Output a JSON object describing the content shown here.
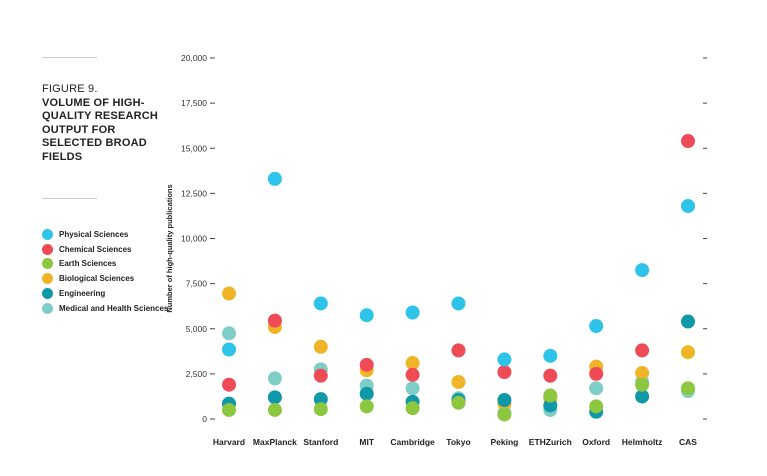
{
  "figure": {
    "number": "FIGURE 9.",
    "title": "VOLUME OF HIGH-QUALITY RESEARCH OUTPUT FOR SELECTED BROAD FIELDS"
  },
  "chart_data": {
    "type": "scatter",
    "title": "VOLUME OF HIGH-QUALITY RESEARCH OUTPUT FOR SELECTED BROAD FIELDS",
    "xlabel": "",
    "ylabel": "Number of high-quality publications",
    "ylim": [
      0,
      20000
    ],
    "yticks": [
      0,
      2500,
      5000,
      7500,
      10000,
      12500,
      15000,
      17500,
      20000
    ],
    "ytick_labels": [
      "0",
      "2,500",
      "5,000",
      "7,500",
      "10,000",
      "12,500",
      "15,000",
      "17,500",
      "20,000"
    ],
    "grid": false,
    "legend_position": "left",
    "categories": [
      "Harvard",
      "MaxPlanck",
      "Stanford",
      "MIT",
      "Cambridge",
      "Tokyo",
      "Peking",
      "ETHZurich",
      "Oxford",
      "Helmholtz",
      "CAS"
    ],
    "series": [
      {
        "name": "Physical Sciences",
        "color": "#2ec4ea",
        "values": [
          3850,
          13300,
          6400,
          5750,
          5900,
          6400,
          3300,
          3500,
          5150,
          8250,
          11800
        ]
      },
      {
        "name": "Chemical Sciences",
        "color": "#ef4b57",
        "values": [
          1900,
          5450,
          2400,
          3000,
          2450,
          3800,
          2600,
          2400,
          2500,
          3800,
          15400
        ]
      },
      {
        "name": "Earth Sciences",
        "color": "#8dc63f",
        "values": [
          500,
          500,
          550,
          700,
          600,
          900,
          250,
          1300,
          700,
          1900,
          1700
        ]
      },
      {
        "name": "Biological Sciences",
        "color": "#f0b427",
        "values": [
          6950,
          5100,
          4000,
          2700,
          3100,
          2050,
          850,
          1150,
          2900,
          2550,
          3700
        ]
      },
      {
        "name": "Engineering",
        "color": "#0f98a8",
        "values": [
          850,
          1200,
          1100,
          1400,
          950,
          1050,
          1050,
          750,
          400,
          1250,
          5400
        ]
      },
      {
        "name": "Medical and Health Sciences",
        "color": "#7fcdc7",
        "values": [
          4750,
          2250,
          2750,
          1850,
          1700,
          1150,
          350,
          500,
          1700,
          2050,
          1550
        ]
      }
    ]
  }
}
